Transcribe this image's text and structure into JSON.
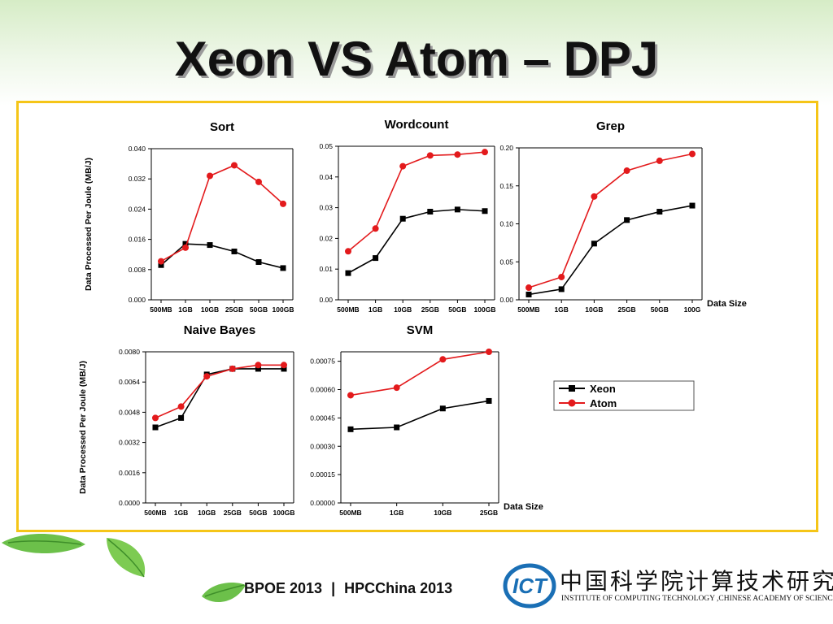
{
  "slide": {
    "title": "Xeon VS Atom – DPJ",
    "footer_conference": "BPOE 2013",
    "footer_separator": "|",
    "footer_event": "HPCChina 2013",
    "logo_text_cn": "中国科学院计算技术研究所",
    "logo_text_en": "INSTITUTE OF COMPUTING TECHNOLOGY ,CHINESE ACADEMY OF SCIENCES",
    "logo_mark": "ICT",
    "colors": {
      "frame": "#f5c518",
      "xeon": "#000000",
      "atom": "#e31a1c",
      "leaf": "#6cc04a"
    }
  },
  "legend": {
    "entries": [
      {
        "label": "Xeon",
        "color": "#000000",
        "marker": "square"
      },
      {
        "label": "Atom",
        "color": "#e31a1c",
        "marker": "circle"
      }
    ]
  },
  "chart_data": [
    {
      "type": "line",
      "title": "Sort",
      "ylabel": "Data Processed Per Joule (MB/J)",
      "xlabel": "",
      "categories": [
        "500MB",
        "1GB",
        "10GB",
        "25GB",
        "50GB",
        "100GB"
      ],
      "ylim": [
        0,
        0.04
      ],
      "yticks": [
        "0.000",
        "0.008",
        "0.016",
        "0.024",
        "0.032",
        "0.040"
      ],
      "series": [
        {
          "name": "Xeon",
          "values": [
            0.0092,
            0.0148,
            0.0145,
            0.0128,
            0.01,
            0.0084
          ]
        },
        {
          "name": "Atom",
          "values": [
            0.0102,
            0.0138,
            0.0328,
            0.0356,
            0.0312,
            0.0254
          ]
        }
      ]
    },
    {
      "type": "line",
      "title": "Wordcount",
      "ylabel": "",
      "xlabel": "",
      "categories": [
        "500MB",
        "1GB",
        "10GB",
        "25GB",
        "50GB",
        "100GB"
      ],
      "ylim": [
        0,
        0.05
      ],
      "yticks": [
        "0.00",
        "0.01",
        "0.02",
        "0.03",
        "0.04",
        "0.05"
      ],
      "series": [
        {
          "name": "Xeon",
          "values": [
            0.0087,
            0.0136,
            0.0264,
            0.0287,
            0.0294,
            0.0289
          ]
        },
        {
          "name": "Atom",
          "values": [
            0.0158,
            0.0232,
            0.0435,
            0.047,
            0.0473,
            0.0481
          ]
        }
      ]
    },
    {
      "type": "line",
      "title": "Grep",
      "ylabel": "",
      "xlabel": "Data Size",
      "categories": [
        "500MB",
        "1GB",
        "10GB",
        "25GB",
        "50GB",
        "100G"
      ],
      "ylim": [
        0,
        0.2
      ],
      "yticks": [
        "0.00",
        "0.05",
        "0.10",
        "0.15",
        "0.20"
      ],
      "series": [
        {
          "name": "Xeon",
          "values": [
            0.007,
            0.014,
            0.074,
            0.105,
            0.116,
            0.124
          ]
        },
        {
          "name": "Atom",
          "values": [
            0.016,
            0.03,
            0.136,
            0.17,
            0.183,
            0.192
          ]
        }
      ]
    },
    {
      "type": "line",
      "title": "Naive Bayes",
      "ylabel": "Data Processed Per Joule (MB/J)",
      "xlabel": "",
      "categories": [
        "500MB",
        "1GB",
        "10GB",
        "25GB",
        "50GB",
        "100GB"
      ],
      "ylim": [
        0,
        0.008
      ],
      "yticks": [
        "0.0000",
        "0.0016",
        "0.0032",
        "0.0048",
        "0.0064",
        "0.0080"
      ],
      "series": [
        {
          "name": "Xeon",
          "values": [
            0.004,
            0.0045,
            0.0068,
            0.0071,
            0.0071,
            0.0071
          ]
        },
        {
          "name": "Atom",
          "values": [
            0.0045,
            0.0051,
            0.0067,
            0.0071,
            0.0073,
            0.0073
          ]
        }
      ]
    },
    {
      "type": "line",
      "title": "SVM",
      "ylabel": "",
      "xlabel": "Data Size",
      "categories": [
        "500MB",
        "1GB",
        "10GB",
        "25GB"
      ],
      "ylim": [
        0,
        0.0008
      ],
      "yticks": [
        "0.00000",
        "0.00015",
        "0.00030",
        "0.00045",
        "0.00060",
        "0.00075"
      ],
      "series": [
        {
          "name": "Xeon",
          "values": [
            0.00039,
            0.0004,
            0.0005,
            0.00054
          ]
        },
        {
          "name": "Atom",
          "values": [
            0.00057,
            0.00061,
            0.00076,
            0.0008
          ]
        }
      ]
    }
  ]
}
